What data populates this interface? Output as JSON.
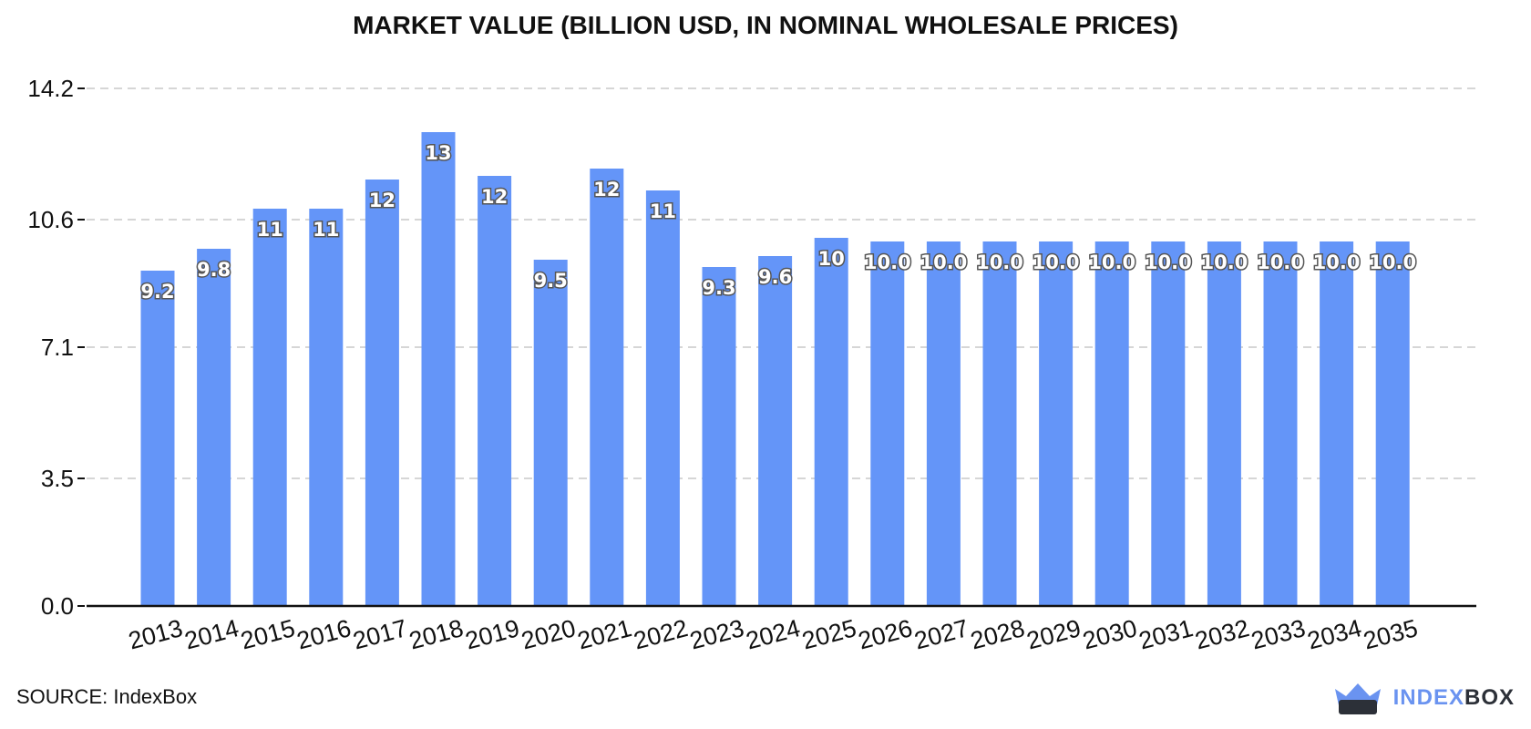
{
  "chart_data": {
    "type": "bar",
    "title": "MARKET VALUE (BILLION USD, IN NOMINAL WHOLESALE PRICES)",
    "categories": [
      "2013",
      "2014",
      "2015",
      "2016",
      "2017",
      "2018",
      "2019",
      "2020",
      "2021",
      "2022",
      "2023",
      "2024",
      "2025",
      "2026",
      "2027",
      "2028",
      "2029",
      "2030",
      "2031",
      "2032",
      "2033",
      "2034",
      "2035"
    ],
    "values": [
      9.2,
      9.8,
      10.9,
      10.9,
      11.7,
      13.0,
      11.8,
      9.5,
      12.0,
      11.4,
      9.3,
      9.6,
      10.1,
      10.0,
      10.0,
      10.0,
      10.0,
      10.0,
      10.0,
      10.0,
      10.0,
      10.0,
      10.0
    ],
    "labels": [
      "9.2",
      "9.8",
      "11",
      "11",
      "12",
      "13",
      "12",
      "9.5",
      "12",
      "11",
      "9.3",
      "9.6",
      "10",
      "10.0",
      "10.0",
      "10.0",
      "10.0",
      "10.0",
      "10.0",
      "10.0",
      "10.0",
      "10.0",
      "10.0"
    ],
    "yticks": [
      "0.0",
      "3.5",
      "7.1",
      "10.6",
      "14.2"
    ],
    "ytick_values": [
      0.0,
      3.5,
      7.1,
      10.6,
      14.2
    ],
    "ylim": [
      0,
      14.2
    ],
    "grid": true,
    "bar_color": "#6495f8"
  },
  "source": "SOURCE: IndexBox",
  "logo": {
    "part1": "INDEX",
    "part2": "BOX"
  }
}
